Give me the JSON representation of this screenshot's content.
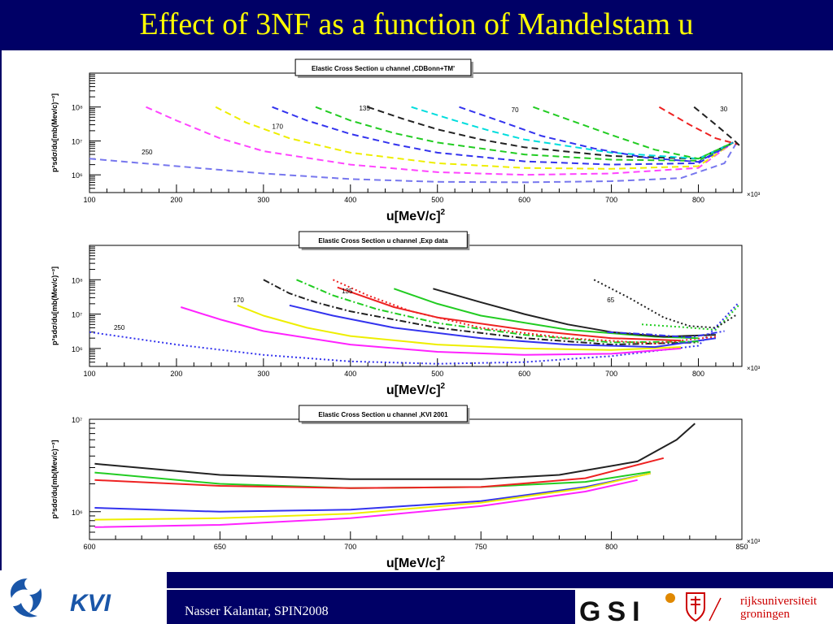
{
  "slide": {
    "title": "Effect of 3NF as a function of Mandelstam u",
    "footer": "Nasser Kalantar, SPIN2008",
    "colors": {
      "banner": "#000066",
      "title_text": "#ffff00",
      "footer_text": "#ffffff"
    }
  },
  "logos": {
    "kvi": {
      "text": "KVI",
      "color": "#1a56a8",
      "icon": "swirl-logo-icon"
    },
    "gsi": {
      "text": "GSI"
    },
    "rug": {
      "line1": "rijksuniversiteit",
      "line2": "groningen",
      "color": "#cc0000",
      "icon": "university-crest-icon"
    }
  },
  "chart_data": [
    {
      "type": "line",
      "title": "Elastic Cross Section u channel ,CDBonn+TM'",
      "xlabel": "u[MeV/c]",
      "xlabel_exp": "2",
      "ylabel": "p²sdσ/du[mb(Mev/c)⁻²]",
      "x_multiplier": "×10³",
      "xlim": [
        100,
        850
      ],
      "ylim": [
        300000,
        1000000000
      ],
      "log_y": true,
      "x_ticks": [
        100,
        200,
        300,
        400,
        500,
        600,
        700,
        800
      ],
      "y_ticks": [
        {
          "value": 1000000,
          "label": "10⁶"
        },
        {
          "value": 10000000,
          "label": "10⁷"
        },
        {
          "value": 100000000,
          "label": "10⁸"
        }
      ],
      "annotations": [
        {
          "text": "250",
          "x": 160,
          "y": 4000000
        },
        {
          "text": "170",
          "x": 310,
          "y": 23000000
        },
        {
          "text": "135",
          "x": 410,
          "y": 80000000
        },
        {
          "text": "70",
          "x": 585,
          "y": 70000000
        },
        {
          "text": "30",
          "x": 825,
          "y": 75000000
        }
      ],
      "series": [
        {
          "color": "#7777ee",
          "dash": true,
          "x": [
            100,
            200,
            300,
            400,
            500,
            600,
            700,
            780,
            830,
            845
          ],
          "y": [
            3000000,
            1800000,
            1100000,
            750000,
            620000,
            600000,
            650000,
            800000,
            2200000,
            10000000
          ]
        },
        {
          "color": "#ff44ff",
          "dash": true,
          "x": [
            165,
            200,
            250,
            300,
            400,
            500,
            600,
            700,
            800,
            840
          ],
          "y": [
            100000000,
            40000000,
            12000000,
            5000000,
            2000000,
            1200000,
            1000000,
            1100000,
            1600000,
            9000000
          ]
        },
        {
          "color": "#eeee00",
          "dash": true,
          "x": [
            245,
            280,
            330,
            400,
            500,
            600,
            700,
            800,
            840
          ],
          "y": [
            100000000,
            35000000,
            12000000,
            4500000,
            2200000,
            1600000,
            1500000,
            1800000,
            9000000
          ]
        },
        {
          "color": "#3333ee",
          "dash": true,
          "x": [
            310,
            350,
            400,
            450,
            500,
            600,
            700,
            800,
            840
          ],
          "y": [
            100000000,
            40000000,
            16000000,
            8000000,
            4500000,
            2500000,
            2000000,
            2200000,
            9000000
          ]
        },
        {
          "color": "#22cc22",
          "dash": true,
          "x": [
            360,
            400,
            450,
            500,
            600,
            700,
            800,
            840
          ],
          "y": [
            100000000,
            40000000,
            17000000,
            9000000,
            4000000,
            2800000,
            2600000,
            9000000
          ]
        },
        {
          "color": "#222222",
          "dash": true,
          "x": [
            420,
            460,
            500,
            550,
            600,
            700,
            800,
            840
          ],
          "y": [
            100000000,
            45000000,
            22000000,
            11000000,
            6500000,
            3600000,
            3000000,
            9000000
          ]
        },
        {
          "color": "#00dddd",
          "dash": true,
          "x": [
            470,
            520,
            560,
            600,
            700,
            800,
            840
          ],
          "y": [
            100000000,
            40000000,
            20000000,
            11000000,
            4500000,
            3000000,
            9000000
          ]
        },
        {
          "color": "#3333ee",
          "dash": true,
          "x": [
            525,
            570,
            620,
            680,
            740,
            800,
            840
          ],
          "y": [
            100000000,
            40000000,
            14000000,
            6000000,
            3200000,
            2400000,
            9000000
          ]
        },
        {
          "color": "#22cc22",
          "dash": true,
          "x": [
            610,
            660,
            700,
            750,
            800,
            840
          ],
          "y": [
            100000000,
            35000000,
            15000000,
            5500000,
            3000000,
            9000000
          ]
        },
        {
          "color": "#ee2222",
          "dash": true,
          "x": [
            755,
            790,
            820,
            845
          ],
          "y": [
            100000000,
            30000000,
            12000000,
            8000000
          ]
        },
        {
          "color": "#222222",
          "dash": true,
          "x": [
            795,
            820,
            840,
            848
          ],
          "y": [
            100000000,
            30000000,
            11000000,
            7000000
          ]
        }
      ]
    },
    {
      "type": "line",
      "title": "Elastic Cross Section u channel ,Exp data",
      "xlabel": "u[MeV/c]",
      "xlabel_exp": "2",
      "ylabel": "p²sdσ/du[mb(Mev/c)⁻²]",
      "x_multiplier": "×10³",
      "xlim": [
        100,
        850
      ],
      "ylim": [
        300000,
        1000000000
      ],
      "log_y": true,
      "x_ticks": [
        100,
        200,
        300,
        400,
        500,
        600,
        700,
        800
      ],
      "y_ticks": [
        {
          "value": 1000000,
          "label": "10⁶"
        },
        {
          "value": 10000000,
          "label": "10⁷"
        },
        {
          "value": 100000000,
          "label": "10⁸"
        }
      ],
      "annotations": [
        {
          "text": "250",
          "x": 128,
          "y": 3500000
        },
        {
          "text": "170",
          "x": 265,
          "y": 22000000
        },
        {
          "text": "135",
          "x": 390,
          "y": 40000000
        },
        {
          "text": "65",
          "x": 695,
          "y": 22000000
        }
      ],
      "series": [
        {
          "color": "#3333ee",
          "dash": "dot",
          "x": [
            100,
            200,
            300,
            400,
            500,
            600,
            700,
            800,
            845
          ],
          "y": [
            3000000,
            1300000,
            650000,
            420000,
            360000,
            400000,
            600000,
            1200000,
            20000000
          ]
        },
        {
          "color": "#ff22ff",
          "dash": false,
          "x": [
            205,
            250,
            300,
            400,
            500,
            600,
            700,
            780
          ],
          "y": [
            16000000,
            7000000,
            3200000,
            1300000,
            800000,
            650000,
            700000,
            1000000
          ]
        },
        {
          "color": "#eeee00",
          "dash": false,
          "x": [
            270,
            300,
            350,
            400,
            500,
            600,
            700,
            780
          ],
          "y": [
            18000000,
            9000000,
            4000000,
            2300000,
            1300000,
            1000000,
            900000,
            1100000
          ]
        },
        {
          "color": "#222222",
          "dash": "dashdot",
          "x": [
            300,
            330,
            360,
            400,
            500,
            600,
            700,
            800
          ],
          "y": [
            100000000,
            40000000,
            22000000,
            12000000,
            4000000,
            2000000,
            1300000,
            1500000
          ]
        },
        {
          "color": "#3333ee",
          "dash": false,
          "x": [
            330,
            380,
            450,
            550,
            650,
            750,
            820
          ],
          "y": [
            18000000,
            9000000,
            4000000,
            2000000,
            1300000,
            1100000,
            2000000
          ]
        },
        {
          "color": "#22cc22",
          "dash": "dashdot",
          "x": [
            338,
            380,
            430,
            500,
            600,
            700,
            800
          ],
          "y": [
            100000000,
            35000000,
            14000000,
            5500000,
            2500000,
            1500000,
            1600000
          ]
        },
        {
          "color": "#ee2222",
          "dash": "dot",
          "x": [
            380,
            420,
            470,
            550,
            650,
            750,
            820
          ],
          "y": [
            100000000,
            35000000,
            12000000,
            4000000,
            2000000,
            1400000,
            2200000
          ]
        },
        {
          "color": "#ee2222",
          "dash": false,
          "x": [
            385,
            450,
            500,
            600,
            700,
            780
          ],
          "y": [
            60000000,
            16000000,
            8000000,
            3500000,
            2000000,
            1700000
          ]
        },
        {
          "color": "#22cc22",
          "dash": false,
          "x": [
            450,
            500,
            550,
            650,
            750,
            800
          ],
          "y": [
            55000000,
            20000000,
            9000000,
            3500000,
            2200000,
            2000000
          ]
        },
        {
          "color": "#222222",
          "dash": false,
          "x": [
            495,
            550,
            600,
            650,
            700,
            760,
            820
          ],
          "y": [
            55000000,
            22000000,
            10000000,
            5000000,
            3000000,
            2200000,
            2500000
          ]
        },
        {
          "color": "#3333ee",
          "dash": "dashdot",
          "x": [
            695,
            740,
            790,
            830
          ],
          "y": [
            3000000,
            2600000,
            2100000,
            3200000
          ]
        },
        {
          "color": "#22cc22",
          "dash": "dot",
          "x": [
            735,
            780,
            820,
            848
          ],
          "y": [
            5000000,
            4200000,
            3500000,
            20000000
          ]
        },
        {
          "color": "#222222",
          "dash": "dot",
          "x": [
            680,
            720,
            760,
            790,
            820,
            845
          ],
          "y": [
            100000000,
            30000000,
            8000000,
            4500000,
            4000000,
            10000000
          ]
        }
      ]
    },
    {
      "type": "line",
      "title": "Elastic Cross Section u channel ,KVI 2001",
      "xlabel": "u[MeV/c]",
      "xlabel_exp": "2",
      "ylabel": "p²sdσ/du[mb(Mev/c)⁻²]",
      "x_multiplier": "×10³",
      "xlim": [
        600,
        850
      ],
      "ylim": [
        500000,
        10000000
      ],
      "log_y": true,
      "x_ticks": [
        600,
        650,
        700,
        750,
        800,
        850
      ],
      "y_ticks": [
        {
          "value": 1000000,
          "label": "10⁶"
        },
        {
          "value": 10000000,
          "label": "10⁷"
        }
      ],
      "annotations": [],
      "series": [
        {
          "color": "#222222",
          "dash": false,
          "x": [
            602,
            650,
            700,
            750,
            780,
            810,
            825,
            832
          ],
          "y": [
            3300000,
            2500000,
            2250000,
            2250000,
            2500000,
            3500000,
            6000000,
            9000000
          ]
        },
        {
          "color": "#22cc22",
          "dash": false,
          "x": [
            602,
            650,
            700,
            750,
            790,
            815
          ],
          "y": [
            2650000,
            2000000,
            1800000,
            1850000,
            2100000,
            2700000
          ]
        },
        {
          "color": "#ee2222",
          "dash": false,
          "x": [
            602,
            650,
            700,
            750,
            790,
            820
          ],
          "y": [
            2200000,
            1900000,
            1800000,
            1850000,
            2300000,
            3800000
          ]
        },
        {
          "color": "#3333ee",
          "dash": false,
          "x": [
            602,
            650,
            700,
            750,
            790,
            815
          ],
          "y": [
            1100000,
            1000000,
            1050000,
            1300000,
            1850000,
            2600000
          ]
        },
        {
          "color": "#eeee00",
          "dash": false,
          "x": [
            602,
            650,
            700,
            750,
            790,
            815
          ],
          "y": [
            820000,
            850000,
            950000,
            1250000,
            1800000,
            2600000
          ]
        },
        {
          "color": "#ff22ff",
          "dash": false,
          "x": [
            602,
            650,
            700,
            750,
            790,
            810
          ],
          "y": [
            680000,
            720000,
            850000,
            1150000,
            1650000,
            2200000
          ]
        }
      ]
    }
  ]
}
